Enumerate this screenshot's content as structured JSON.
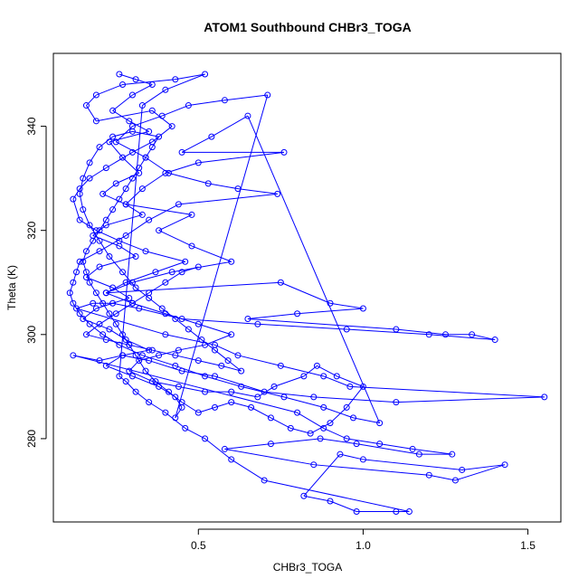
{
  "chart_data": {
    "type": "line",
    "title": "ATOM1 Southbound CHBr3_TOGA",
    "xlabel": "CHBr3_TOGA",
    "ylabel": "Theta (K)",
    "xlim": [
      0.06,
      1.6
    ],
    "ylim": [
      264,
      354
    ],
    "x_ticks": [
      0.5,
      1.0,
      1.5
    ],
    "x_tick_labels": [
      "0.5",
      "1.0",
      "1.5"
    ],
    "y_ticks": [
      280,
      300,
      320,
      340
    ],
    "y_tick_labels": [
      "280",
      "300",
      "320",
      "340"
    ],
    "grid": false,
    "legend": "none",
    "color": "#0000ff",
    "markers": "open-circle",
    "series": [
      {
        "values": [
          [
            0.26,
            350
          ],
          [
            0.31,
            349
          ],
          [
            0.36,
            348
          ],
          [
            0.3,
            346
          ],
          [
            0.24,
            343
          ],
          [
            0.29,
            341
          ],
          [
            0.35,
            339
          ],
          [
            0.23,
            337
          ],
          [
            0.27,
            334
          ],
          [
            0.32,
            331
          ],
          [
            0.25,
            329
          ],
          [
            0.21,
            327
          ],
          [
            0.28,
            325
          ],
          [
            0.33,
            323
          ],
          [
            0.22,
            321
          ],
          [
            0.18,
            319
          ],
          [
            0.26,
            317
          ],
          [
            0.31,
            315
          ],
          [
            0.2,
            313
          ],
          [
            0.16,
            311
          ],
          [
            0.24,
            309
          ],
          [
            0.29,
            307
          ],
          [
            0.19,
            305
          ],
          [
            0.15,
            303
          ],
          [
            0.23,
            301
          ],
          [
            0.28,
            299
          ],
          [
            0.35,
            297
          ],
          [
            0.27,
            296
          ],
          [
            0.22,
            294
          ],
          [
            0.3,
            292
          ],
          [
            0.38,
            290
          ],
          [
            0.43,
            288
          ],
          [
            0.45,
            286
          ],
          [
            0.43,
            284
          ],
          [
            0.71,
            346
          ],
          [
            0.58,
            345
          ],
          [
            0.47,
            344
          ],
          [
            0.39,
            342
          ],
          [
            0.3,
            340
          ],
          [
            0.25,
            337
          ],
          [
            0.34,
            334
          ],
          [
            0.41,
            331
          ],
          [
            0.53,
            329
          ],
          [
            0.62,
            328
          ],
          [
            0.74,
            327
          ],
          [
            0.44,
            325
          ],
          [
            0.35,
            322
          ],
          [
            0.28,
            319
          ],
          [
            0.2,
            316
          ],
          [
            0.14,
            314
          ],
          [
            0.13,
            312
          ],
          [
            0.12,
            310
          ],
          [
            0.11,
            308
          ],
          [
            0.12,
            306
          ],
          [
            0.14,
            304
          ],
          [
            0.17,
            302
          ],
          [
            0.21,
            300
          ],
          [
            0.26,
            298
          ],
          [
            0.33,
            296
          ],
          [
            0.43,
            294
          ],
          [
            0.52,
            292
          ],
          [
            0.63,
            290
          ],
          [
            0.76,
            288
          ],
          [
            0.88,
            286
          ],
          [
            0.97,
            284
          ],
          [
            1.05,
            283
          ],
          [
            0.65,
            342
          ],
          [
            0.54,
            338
          ],
          [
            0.45,
            335
          ],
          [
            0.76,
            335
          ],
          [
            0.5,
            333
          ],
          [
            0.4,
            331
          ],
          [
            0.33,
            328
          ],
          [
            0.28,
            325
          ],
          [
            0.48,
            323
          ],
          [
            0.38,
            320
          ],
          [
            0.48,
            317
          ],
          [
            0.6,
            314
          ],
          [
            0.42,
            312
          ],
          [
            0.3,
            310
          ],
          [
            0.22,
            308
          ],
          [
            0.75,
            310
          ],
          [
            0.9,
            306
          ],
          [
            1.0,
            305
          ],
          [
            0.8,
            304
          ],
          [
            0.65,
            303
          ],
          [
            1.1,
            301
          ],
          [
            1.25,
            300
          ],
          [
            1.33,
            300
          ],
          [
            1.4,
            299
          ],
          [
            1.2,
            300
          ],
          [
            0.95,
            301
          ],
          [
            0.68,
            302
          ],
          [
            0.45,
            303
          ],
          [
            0.32,
            305
          ],
          [
            0.24,
            306
          ],
          [
            0.18,
            306
          ],
          [
            0.13,
            305
          ],
          [
            0.4,
            300
          ],
          [
            0.55,
            298
          ],
          [
            0.62,
            296
          ],
          [
            0.75,
            294
          ],
          [
            0.88,
            292
          ],
          [
            0.96,
            290
          ],
          [
            1.55,
            288
          ],
          [
            1.1,
            287
          ],
          [
            0.85,
            288
          ],
          [
            0.7,
            289
          ],
          [
            0.55,
            292
          ],
          [
            0.45,
            293
          ],
          [
            0.35,
            295
          ],
          [
            0.27,
            296
          ],
          [
            0.2,
            295
          ],
          [
            0.12,
            296
          ],
          [
            0.8,
            285
          ],
          [
            0.88,
            282
          ],
          [
            0.95,
            280
          ],
          [
            1.05,
            279
          ],
          [
            1.15,
            278
          ],
          [
            1.27,
            277
          ],
          [
            1.17,
            277
          ],
          [
            0.98,
            279
          ],
          [
            0.87,
            280
          ],
          [
            0.72,
            279
          ],
          [
            0.58,
            278
          ],
          [
            0.85,
            275
          ],
          [
            1.2,
            273
          ],
          [
            1.28,
            272
          ],
          [
            1.43,
            275
          ],
          [
            1.3,
            274
          ],
          [
            1.0,
            276
          ],
          [
            0.93,
            277
          ],
          [
            0.82,
            269
          ],
          [
            0.9,
            268
          ],
          [
            0.98,
            266
          ],
          [
            1.1,
            266
          ],
          [
            1.14,
            266
          ],
          [
            0.7,
            272
          ],
          [
            0.6,
            276
          ],
          [
            0.52,
            280
          ],
          [
            0.46,
            282
          ],
          [
            0.4,
            285
          ],
          [
            0.35,
            287
          ],
          [
            0.31,
            289
          ],
          [
            0.28,
            291
          ],
          [
            0.26,
            292
          ],
          [
            0.33,
            344
          ],
          [
            0.4,
            347
          ],
          [
            0.52,
            350
          ],
          [
            0.43,
            349
          ],
          [
            0.27,
            348
          ],
          [
            0.19,
            346
          ],
          [
            0.16,
            344
          ],
          [
            0.19,
            341
          ],
          [
            0.36,
            343
          ],
          [
            0.42,
            340
          ],
          [
            0.36,
            337
          ],
          [
            0.3,
            335
          ],
          [
            0.22,
            332
          ],
          [
            0.17,
            330
          ],
          [
            0.14,
            328
          ],
          [
            0.12,
            326
          ],
          [
            0.14,
            322
          ],
          [
            0.19,
            320
          ],
          [
            0.26,
            318
          ],
          [
            0.34,
            316
          ],
          [
            0.46,
            314
          ],
          [
            0.37,
            312
          ],
          [
            0.28,
            310
          ],
          [
            0.22,
            308
          ],
          [
            0.3,
            306
          ],
          [
            0.4,
            304
          ],
          [
            0.5,
            302
          ],
          [
            0.6,
            300
          ],
          [
            0.52,
            298
          ],
          [
            0.44,
            297
          ],
          [
            0.38,
            296
          ],
          [
            0.32,
            295
          ],
          [
            0.29,
            293
          ],
          [
            0.36,
            291
          ],
          [
            0.44,
            290
          ],
          [
            0.52,
            289
          ],
          [
            0.6,
            289
          ],
          [
            0.68,
            288
          ],
          [
            0.73,
            290
          ],
          [
            0.82,
            292
          ],
          [
            0.86,
            294
          ],
          [
            0.92,
            292
          ],
          [
            1.0,
            290
          ],
          [
            0.95,
            286
          ],
          [
            0.9,
            283
          ],
          [
            0.84,
            281
          ],
          [
            0.78,
            282
          ],
          [
            0.72,
            284
          ],
          [
            0.66,
            286
          ],
          [
            0.6,
            287
          ],
          [
            0.55,
            286
          ],
          [
            0.5,
            285
          ],
          [
            0.45,
            287
          ],
          [
            0.41,
            289
          ],
          [
            0.37,
            291
          ],
          [
            0.34,
            293
          ],
          [
            0.31,
            296
          ],
          [
            0.29,
            298
          ],
          [
            0.27,
            300
          ],
          [
            0.25,
            302
          ],
          [
            0.23,
            304
          ],
          [
            0.21,
            306
          ],
          [
            0.19,
            308
          ],
          [
            0.17,
            310
          ],
          [
            0.16,
            312
          ],
          [
            0.15,
            314
          ],
          [
            0.16,
            316
          ],
          [
            0.18,
            318
          ],
          [
            0.2,
            320
          ],
          [
            0.22,
            322
          ],
          [
            0.24,
            324
          ],
          [
            0.26,
            326
          ],
          [
            0.28,
            328
          ],
          [
            0.3,
            330
          ],
          [
            0.32,
            332
          ],
          [
            0.34,
            334
          ],
          [
            0.36,
            336
          ],
          [
            0.38,
            338
          ],
          [
            0.3,
            339
          ],
          [
            0.24,
            338
          ],
          [
            0.2,
            336
          ],
          [
            0.17,
            333
          ],
          [
            0.15,
            330
          ],
          [
            0.14,
            327
          ],
          [
            0.15,
            324
          ],
          [
            0.17,
            321
          ],
          [
            0.2,
            318
          ],
          [
            0.23,
            315
          ],
          [
            0.27,
            312
          ],
          [
            0.31,
            309
          ],
          [
            0.35,
            307
          ],
          [
            0.39,
            305
          ],
          [
            0.43,
            303
          ],
          [
            0.47,
            301
          ],
          [
            0.51,
            299
          ],
          [
            0.55,
            297
          ],
          [
            0.59,
            295
          ],
          [
            0.63,
            293
          ],
          [
            0.57,
            294
          ],
          [
            0.5,
            295
          ],
          [
            0.43,
            296
          ],
          [
            0.36,
            297
          ],
          [
            0.29,
            298
          ],
          [
            0.22,
            299
          ],
          [
            0.16,
            300
          ],
          [
            0.2,
            302
          ],
          [
            0.25,
            304
          ],
          [
            0.3,
            306
          ],
          [
            0.35,
            308
          ],
          [
            0.4,
            310
          ],
          [
            0.45,
            312
          ],
          [
            0.5,
            313
          ]
        ]
      }
    ]
  }
}
